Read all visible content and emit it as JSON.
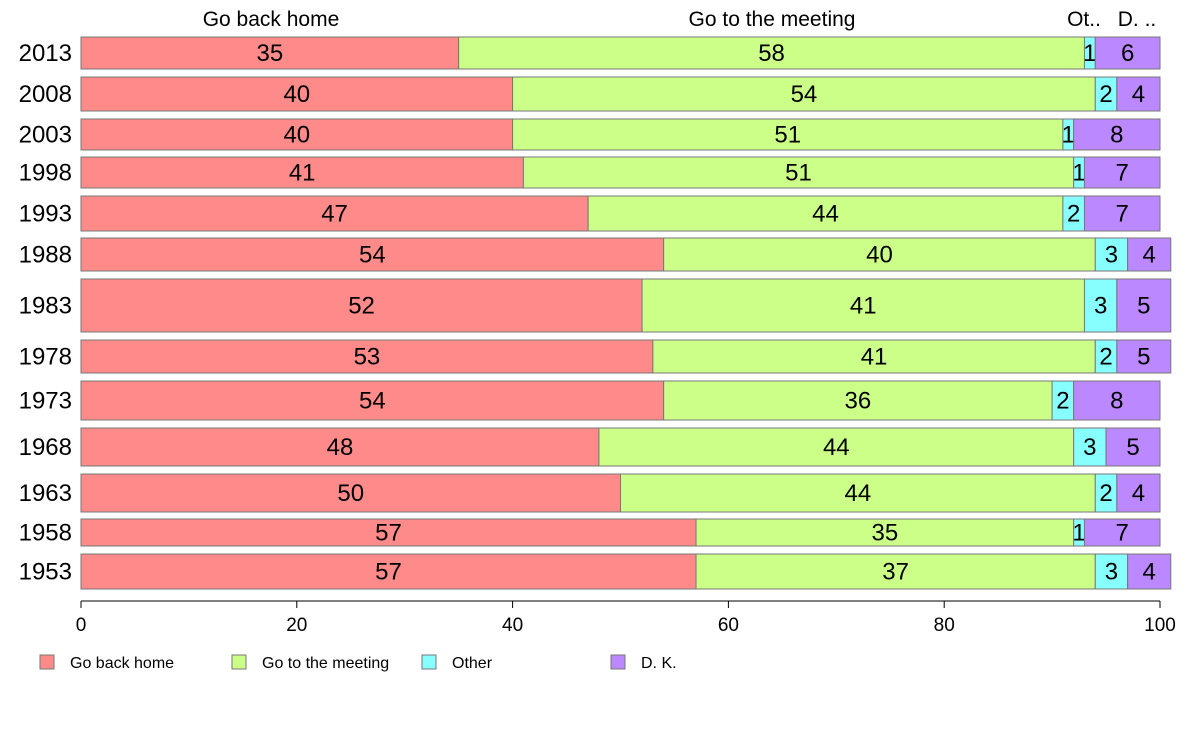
{
  "chart_data": {
    "type": "bar",
    "orientation": "horizontal",
    "stacked": true,
    "categories": [
      "2013",
      "2008",
      "2003",
      "1998",
      "1993",
      "1988",
      "1983",
      "1978",
      "1973",
      "1968",
      "1963",
      "1958",
      "1953"
    ],
    "series": [
      {
        "name": "Go back home",
        "values": [
          35,
          40,
          40,
          41,
          47,
          54,
          52,
          53,
          54,
          48,
          50,
          57,
          57
        ],
        "color": "#ff8a8a"
      },
      {
        "name": "Go to the meeting",
        "values": [
          58,
          54,
          51,
          51,
          44,
          40,
          41,
          41,
          36,
          44,
          44,
          35,
          37
        ],
        "color": "#ccff88"
      },
      {
        "name": "Other",
        "values": [
          1,
          2,
          1,
          1,
          2,
          3,
          3,
          2,
          2,
          3,
          2,
          1,
          3
        ],
        "color": "#88ffff"
      },
      {
        "name": "D. K.",
        "values": [
          6,
          4,
          8,
          7,
          7,
          4,
          5,
          5,
          8,
          5,
          4,
          7,
          4
        ],
        "color": "#bb88ff"
      }
    ],
    "column_headers": [
      "Go back home",
      "Go to the meeting",
      "Ot..",
      "D. .."
    ],
    "xlim": [
      0,
      100
    ],
    "xticks": [
      "0",
      "20",
      "40",
      "60",
      "80",
      "100"
    ],
    "grid": false,
    "legend_position": "bottom"
  }
}
